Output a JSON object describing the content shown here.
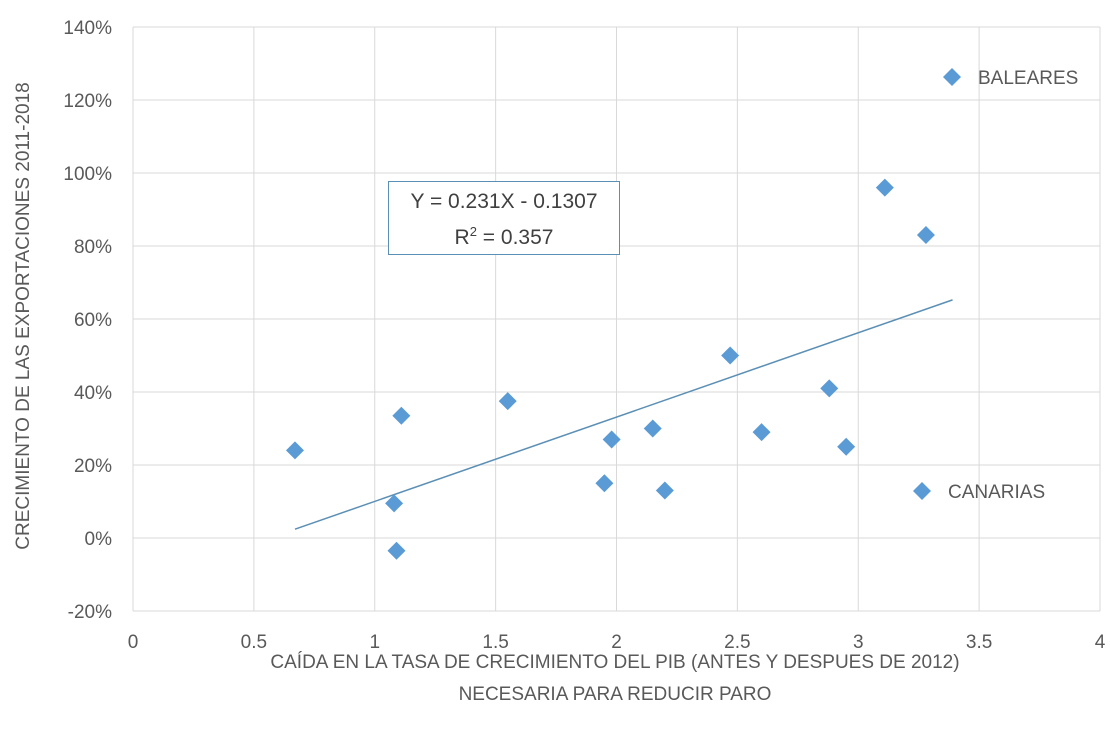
{
  "chart_data": {
    "type": "scatter",
    "xlabel_line1": "CAÍDA EN LA TASA DE CRECIMIENTO DEL PIB (ANTES Y DESPUES DE 2012)",
    "xlabel_line2": "NECESARIA PARA REDUCIR PARO",
    "ylabel": "CRECIMIENTO DE LAS EXPORTACIONES 2011-2018",
    "xlim": [
      0,
      4
    ],
    "ylim": [
      -0.2,
      1.4
    ],
    "x_ticks": [
      "0",
      "0.5",
      "1",
      "1.5",
      "2",
      "2.5",
      "3",
      "3.5",
      "4"
    ],
    "y_ticks": [
      "-20%",
      "0%",
      "20%",
      "40%",
      "60%",
      "80%",
      "100%",
      "120%",
      "140%"
    ],
    "grid": true,
    "marker_color": "#5b9bd5",
    "trendline_color": "#5b8fb5",
    "points": [
      {
        "x": 0.67,
        "y": 0.24
      },
      {
        "x": 1.08,
        "y": 0.095
      },
      {
        "x": 1.09,
        "y": -0.035
      },
      {
        "x": 1.11,
        "y": 0.335
      },
      {
        "x": 1.55,
        "y": 0.375
      },
      {
        "x": 1.95,
        "y": 0.15
      },
      {
        "x": 1.98,
        "y": 0.27
      },
      {
        "x": 2.15,
        "y": 0.3
      },
      {
        "x": 2.2,
        "y": 0.13
      },
      {
        "x": 2.47,
        "y": 0.5
      },
      {
        "x": 2.6,
        "y": 0.29
      },
      {
        "x": 2.88,
        "y": 0.41
      },
      {
        "x": 2.95,
        "y": 0.25
      },
      {
        "x": 3.11,
        "y": 0.96
      },
      {
        "x": 3.28,
        "y": 0.83
      }
    ],
    "trendline": {
      "slope": 0.231,
      "intercept": -0.1307,
      "x_start": 0.67,
      "x_end": 3.39
    },
    "equation": {
      "line1": "Y = 0.231X - 0.1307",
      "r2_prefix": "R",
      "r2_exp": "2",
      "r2_suffix": " = 0.357"
    },
    "legend": [
      {
        "label": "BALEARES"
      },
      {
        "label": "CANARIAS"
      }
    ]
  }
}
